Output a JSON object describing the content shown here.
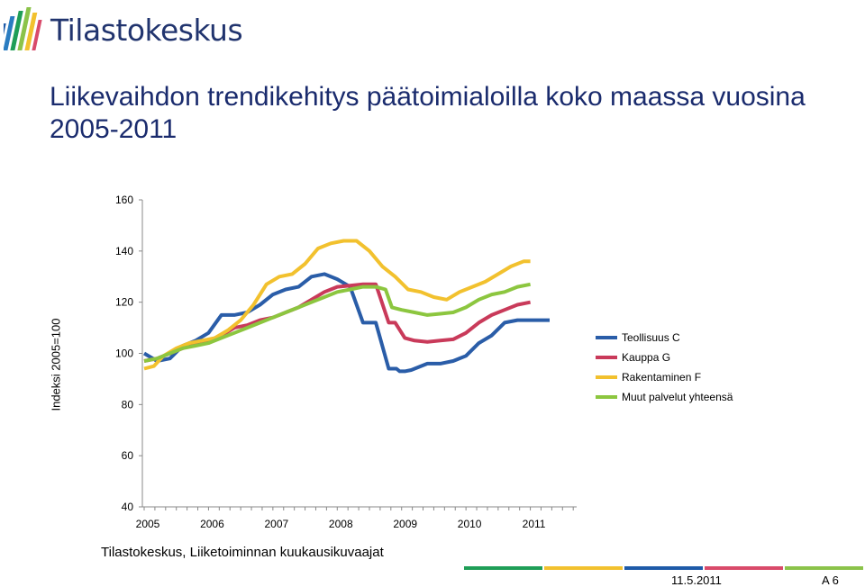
{
  "logo": {
    "text": "Tilastokeskus"
  },
  "title": "Liikevaihdon trendikehitys päätoimialoilla koko maassa vuosina 2005-2011",
  "source": "Tilastokeskus, Liiketoiminnan kuukausikuvaajat",
  "footer": {
    "date": "11.5.2011",
    "page": "A 6",
    "colors": [
      "#1f9e57",
      "#f2c12e",
      "#1e5aa8",
      "#d94a6a",
      "#8bc34a"
    ]
  },
  "chart_data": {
    "type": "line",
    "title": "",
    "xlabel": "",
    "ylabel": "Indeksi 2005=100",
    "ylim": [
      40,
      160
    ],
    "yticks": [
      40,
      60,
      80,
      100,
      120,
      140,
      160
    ],
    "xlim": [
      2005,
      2011.72
    ],
    "xticks": [
      "2005",
      "2006",
      "2007",
      "2008",
      "2009",
      "2010",
      "2011"
    ],
    "grid": false,
    "legend_position": "right",
    "series": [
      {
        "name": "Teollisuus C",
        "color": "#2a5da8",
        "x": [
          2005.0,
          2005.2,
          2005.4,
          2005.6,
          2005.8,
          2006.0,
          2006.2,
          2006.4,
          2006.6,
          2006.8,
          2007.0,
          2007.2,
          2007.4,
          2007.6,
          2007.8,
          2008.0,
          2008.2,
          2008.4,
          2008.6,
          2008.8,
          2008.92,
          2008.97,
          2009.05,
          2009.15,
          2009.4,
          2009.6,
          2009.8,
          2010.0,
          2010.2,
          2010.4,
          2010.6,
          2010.8,
          2011.0,
          2011.15,
          2011.3
        ],
        "y": [
          100,
          97,
          98,
          103,
          105,
          108,
          115,
          115,
          116,
          119,
          123,
          125,
          126,
          130,
          131,
          129,
          126,
          112,
          112,
          94,
          94,
          93,
          93,
          93.5,
          96,
          96,
          97,
          99,
          104,
          107,
          112,
          113,
          113,
          113,
          113
        ]
      },
      {
        "name": "Kauppa G",
        "color": "#c93a5a",
        "x": [
          2005.0,
          2005.2,
          2005.4,
          2005.6,
          2005.8,
          2006.0,
          2006.2,
          2006.4,
          2006.6,
          2006.8,
          2007.0,
          2007.2,
          2007.4,
          2007.6,
          2007.8,
          2008.0,
          2008.2,
          2008.4,
          2008.6,
          2008.8,
          2008.9,
          2009.05,
          2009.2,
          2009.4,
          2009.6,
          2009.8,
          2010.0,
          2010.2,
          2010.4,
          2010.6,
          2010.8,
          2011.0
        ],
        "y": [
          97,
          98,
          100,
          102,
          104,
          105,
          107,
          110,
          111,
          113,
          114,
          116,
          118,
          121,
          124,
          126,
          126.5,
          127,
          127,
          112,
          112,
          106,
          105,
          104.5,
          105,
          105.5,
          108,
          112,
          115,
          117,
          119,
          120
        ]
      },
      {
        "name": "Rakentaminen F",
        "color": "#f2c12e",
        "x": [
          2005.0,
          2005.15,
          2005.3,
          2005.5,
          2005.7,
          2005.9,
          2006.1,
          2006.3,
          2006.5,
          2006.7,
          2006.9,
          2007.1,
          2007.3,
          2007.5,
          2007.7,
          2007.9,
          2008.1,
          2008.3,
          2008.5,
          2008.7,
          2008.9,
          2009.1,
          2009.3,
          2009.5,
          2009.7,
          2009.9,
          2010.1,
          2010.3,
          2010.5,
          2010.7,
          2010.9,
          2011.0
        ],
        "y": [
          94,
          95,
          99,
          102,
          104,
          105,
          106,
          109,
          113,
          119,
          127,
          130,
          131,
          135,
          141,
          143,
          144,
          144,
          140,
          134,
          130,
          125,
          124,
          122,
          121,
          124,
          126,
          128,
          131,
          134,
          136,
          136
        ]
      },
      {
        "name": "Muut palvelut yhteensä",
        "color": "#8cc63f",
        "x": [
          2005.0,
          2005.2,
          2005.4,
          2005.6,
          2005.8,
          2006.0,
          2006.2,
          2006.4,
          2006.6,
          2006.8,
          2007.0,
          2007.2,
          2007.4,
          2007.6,
          2007.8,
          2008.0,
          2008.2,
          2008.4,
          2008.6,
          2008.75,
          2008.85,
          2009.0,
          2009.2,
          2009.4,
          2009.6,
          2009.8,
          2010.0,
          2010.2,
          2010.4,
          2010.6,
          2010.8,
          2011.0
        ],
        "y": [
          97,
          98,
          100,
          102,
          103,
          104,
          106,
          108,
          110,
          112,
          114,
          116,
          118,
          120,
          122,
          124,
          125,
          126,
          126,
          125,
          118,
          117,
          116,
          115,
          115.5,
          116,
          118,
          121,
          123,
          124,
          126,
          127
        ]
      }
    ]
  }
}
